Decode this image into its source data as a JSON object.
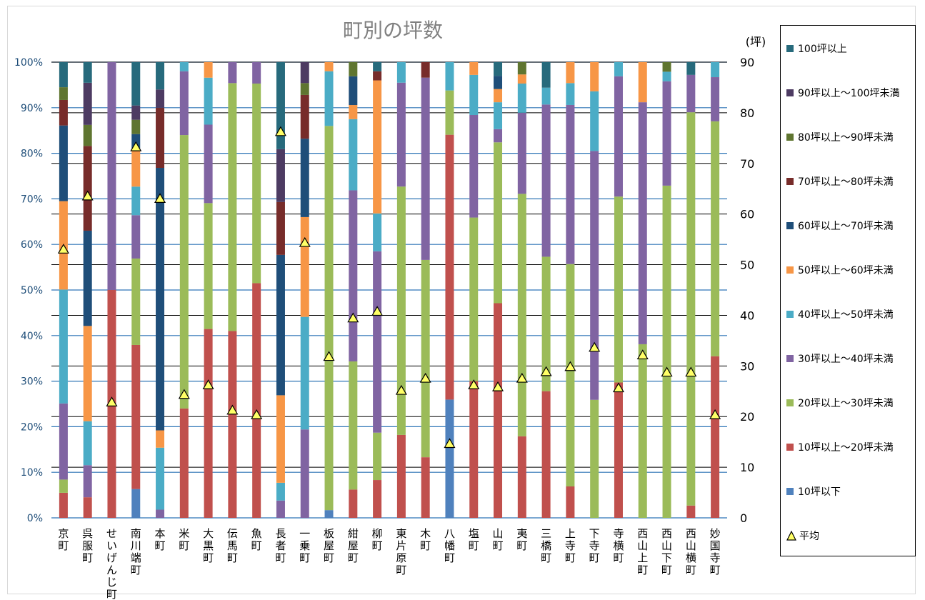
{
  "chart_data": {
    "type": "bar",
    "title": "町別の坪数",
    "right_axis_unit": "(坪)",
    "y_left_ticks": [
      "0%",
      "10%",
      "20%",
      "30%",
      "40%",
      "50%",
      "60%",
      "70%",
      "80%",
      "90%",
      "100%"
    ],
    "y_right_ticks": [
      "0",
      "10",
      "20",
      "30",
      "40",
      "50",
      "60",
      "70",
      "80",
      "90"
    ],
    "y_right_lim": [
      0,
      90
    ],
    "categories": [
      "京町",
      "呉服町",
      "せいげんじ町",
      "南川端町",
      "本町",
      "米町",
      "大黒町",
      "伝馬町",
      "魚町",
      "長者町",
      "一乗町",
      "板屋町",
      "紺屋町",
      "柳町",
      "東片原町",
      "木町",
      "八幡町",
      "塩町",
      "山町",
      "夷町",
      "三橋町",
      "上寺町",
      "下寺町",
      "寺横町",
      "西山上町",
      "西山下町",
      "西山横町",
      "妙国寺町"
    ],
    "series": [
      {
        "name": "10坪以下",
        "color": "#4f81bd",
        "values": [
          0,
          0,
          0,
          6.25,
          0,
          0,
          0,
          0,
          0,
          0,
          0,
          1.7,
          0,
          0,
          0,
          0,
          25.9,
          0,
          0,
          0,
          0,
          0,
          0,
          0,
          0,
          0,
          0,
          0
        ]
      },
      {
        "name": "10坪以上～20坪未満",
        "color": "#c0504d",
        "values": [
          5.5,
          4.5,
          50,
          31.25,
          0,
          24,
          41.4,
          41,
          51.5,
          0,
          0,
          0,
          6.2,
          8.3,
          18.2,
          13.3,
          58,
          30,
          47.1,
          17.9,
          27.8,
          6.9,
          0,
          29.7,
          0,
          0,
          2.7,
          35.5
        ]
      },
      {
        "name": "20坪以上～30坪未満",
        "color": "#9bbb59",
        "values": [
          2.9,
          0,
          0,
          18.75,
          0,
          60,
          27.6,
          54.4,
          43.8,
          0,
          0,
          84.3,
          28.1,
          10.4,
          54.5,
          43.3,
          9.7,
          35.9,
          35.3,
          53.2,
          29.5,
          48.8,
          25.9,
          40.8,
          38.1,
          72.9,
          86.3,
          51.6
        ]
      },
      {
        "name": "30坪以上～40坪未満",
        "color": "#8064a2",
        "values": [
          16.7,
          7,
          50,
          9.4,
          1.8,
          14,
          17.2,
          4.6,
          4.7,
          3.8,
          19.4,
          0,
          37.5,
          39.8,
          22.8,
          40,
          0,
          22.5,
          2.9,
          17.8,
          33.4,
          34.9,
          54.6,
          26.4,
          53.1,
          22.9,
          8.2,
          9.7
        ]
      },
      {
        "name": "40坪以上～50坪未満",
        "color": "#4bacc6",
        "values": [
          25,
          9.6,
          0,
          6.2,
          13.6,
          2,
          10.3,
          0,
          0,
          3.9,
          24.7,
          12,
          15.6,
          8.3,
          4.5,
          0,
          6.2,
          8.8,
          5.9,
          6.4,
          3.7,
          4.8,
          13.1,
          3.1,
          0,
          2.1,
          0,
          3.3
        ]
      },
      {
        "name": "50坪以上～60坪未満",
        "color": "#f79646",
        "values": [
          19.4,
          20.8,
          0,
          8.3,
          3.8,
          0,
          3.4,
          0,
          0,
          19.2,
          21.9,
          2,
          3.1,
          29.2,
          0,
          0,
          0,
          2.8,
          2.9,
          2,
          0,
          4.6,
          6.4,
          0,
          8.8,
          0,
          0,
          0
        ]
      },
      {
        "name": "60坪以上～70坪未満",
        "color": "#1f4e79",
        "values": [
          16.6,
          20.8,
          0,
          3.1,
          57.6,
          0,
          0,
          0,
          0,
          30.8,
          17.2,
          0,
          6.3,
          0,
          0,
          0,
          0,
          0,
          2.9,
          0,
          0,
          0,
          0,
          0,
          0,
          0,
          0,
          0
        ]
      },
      {
        "name": "70坪以上～80坪未満",
        "color": "#772c2a",
        "values": [
          5.6,
          18.5,
          0,
          0,
          13.2,
          0,
          0,
          0,
          0,
          11.6,
          9.6,
          0,
          0,
          2,
          0,
          3.4,
          0,
          0,
          0,
          0,
          0,
          0,
          0,
          0,
          0,
          0,
          0,
          0
        ]
      },
      {
        "name": "80坪以上～90坪未満",
        "color": "#5f7530",
        "values": [
          2.8,
          4.6,
          0,
          3.1,
          0,
          0,
          0,
          0,
          0,
          0,
          2.6,
          0,
          3.1,
          0,
          0,
          0,
          0,
          0,
          0,
          2.7,
          0,
          0,
          0,
          0,
          0,
          2.1,
          0,
          0
        ]
      },
      {
        "name": "90坪以上～100坪未満",
        "color": "#4d3b62",
        "values": [
          0,
          9.2,
          0,
          3.1,
          4,
          0,
          0,
          0,
          0,
          11.6,
          4.6,
          0,
          0,
          0,
          0,
          0,
          0,
          0,
          0,
          0,
          0,
          0,
          0,
          0,
          0,
          0,
          0,
          0
        ]
      },
      {
        "name": "100坪以上",
        "color": "#276a7c",
        "values": [
          5.5,
          4.5,
          0,
          9.4,
          6,
          0,
          0,
          0,
          0,
          19.1,
          0,
          0,
          0,
          2,
          0,
          0,
          0,
          0,
          3,
          0,
          5.6,
          0,
          0,
          0,
          0,
          0,
          2.8,
          0
        ]
      }
    ],
    "average": {
      "name": "平均",
      "color": "#ffff66",
      "values": [
        53,
        63.5,
        22.8,
        73.2,
        63,
        24.3,
        26.2,
        21.2,
        20.3,
        76.2,
        54.3,
        31.8,
        39.4,
        40.7,
        25.1,
        27.5,
        14.6,
        26.2,
        25.8,
        27.5,
        28.8,
        29.8,
        33.6,
        25.6,
        32.1,
        28.7,
        28.7,
        20.3
      ]
    },
    "grid": true,
    "legend_position": "right"
  }
}
